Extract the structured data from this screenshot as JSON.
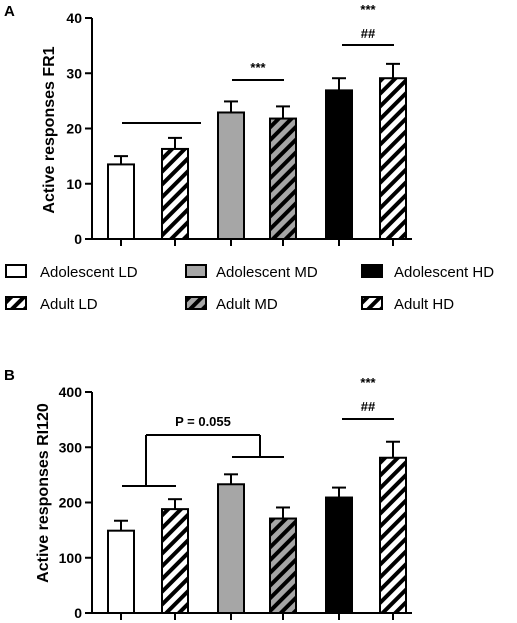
{
  "legend": [
    {
      "label": "Adolescent LD",
      "fill": "white"
    },
    {
      "label": "Adolescent MD",
      "fill": "gray"
    },
    {
      "label": "Adolescent HD",
      "fill": "black"
    },
    {
      "label": "Adult LD",
      "fill": "hatch-white"
    },
    {
      "label": "Adult MD",
      "fill": "hatch-gray"
    },
    {
      "label": "Adult HD",
      "fill": "hatch-white"
    }
  ],
  "colors": {
    "gray": "#a6a6a6",
    "black": "#000000",
    "white": "#ffffff"
  },
  "chart_data": [
    {
      "panel": "A",
      "type": "bar",
      "ylabel": "Active responses FR1",
      "ylim": [
        0,
        40
      ],
      "yticks": [
        "0",
        "10",
        "20",
        "30",
        "40"
      ],
      "categories": [
        "Adolescent LD",
        "Adult LD",
        "Adolescent MD",
        "Adult MD",
        "Adolescent HD",
        "Adult HD"
      ],
      "values": [
        13.5,
        16.3,
        22.9,
        21.8,
        26.9,
        29.1
      ],
      "errors": [
        1.5,
        2.0,
        2.0,
        2.2,
        2.2,
        2.6
      ],
      "annotations": [
        {
          "text": "***",
          "bar": 3
        },
        {
          "text": "***",
          "bar": 5
        },
        {
          "text": "##",
          "bar": 5
        }
      ]
    },
    {
      "panel": "B",
      "type": "bar",
      "ylabel": "Active responses RI120",
      "ylim": [
        0,
        400
      ],
      "yticks": [
        "0",
        "100",
        "200",
        "300",
        "400"
      ],
      "categories": [
        "Adolescent LD",
        "Adult LD",
        "Adolescent MD",
        "Adult MD",
        "Adolescent HD",
        "Adult HD"
      ],
      "values": [
        149,
        188,
        233,
        171,
        209,
        281
      ],
      "errors": [
        18,
        18,
        18,
        20,
        18,
        29
      ],
      "annotations": [
        {
          "text": "P = 0.055"
        },
        {
          "text": "***",
          "bar": 5
        },
        {
          "text": "##",
          "bar": 5
        }
      ]
    }
  ]
}
